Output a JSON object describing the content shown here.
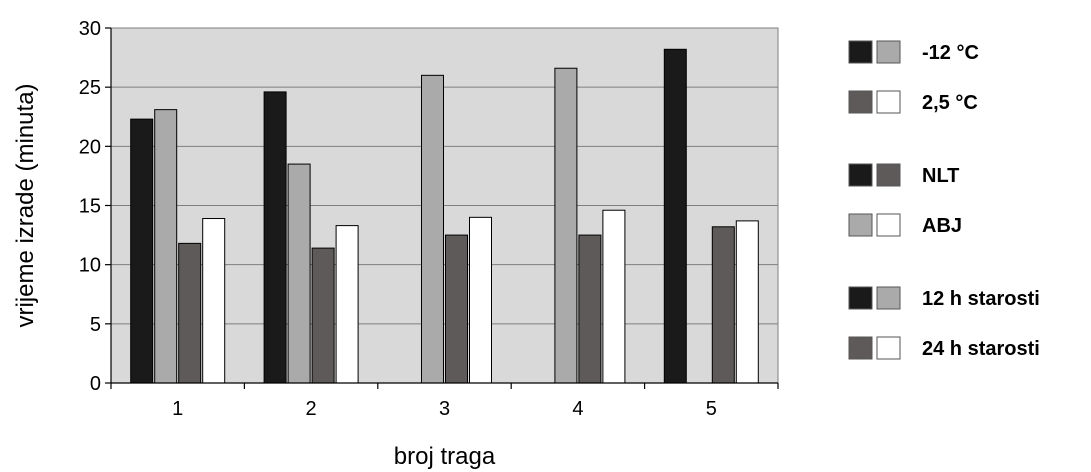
{
  "chart_data": {
    "type": "bar",
    "categories": [
      "1",
      "2",
      "3",
      "4",
      "5"
    ],
    "xlabel": "broj traga",
    "ylabel": "vrijeme izrade  (minuta)",
    "ylim": [
      0,
      30
    ],
    "yticks": [
      0,
      5,
      10,
      15,
      20,
      25,
      30
    ],
    "grid": true,
    "legend_position": "right",
    "colors": {
      "black": "#1a1a1a",
      "light_gray": "#aaaaaa",
      "dark_gray": "#5f5a5a",
      "white": "#ffffff",
      "plot_bg": "#d9d9d9"
    },
    "series": [
      {
        "values": [
          22.3,
          24.6,
          null,
          null,
          28.2
        ],
        "color": "#1a1a1a"
      },
      {
        "values": [
          23.1,
          18.5,
          26.0,
          26.6,
          null
        ],
        "color": "#aaaaaa"
      },
      {
        "values": [
          11.8,
          11.4,
          12.5,
          12.5,
          13.2
        ],
        "color": "#5f5a5a"
      },
      {
        "values": [
          13.9,
          13.3,
          14.0,
          14.6,
          13.7
        ],
        "color": "#ffffff"
      }
    ],
    "legend": [
      {
        "label": "-12 °C",
        "swatches": [
          "#1a1a1a",
          "#aaaaaa"
        ]
      },
      {
        "label": "2,5 °C",
        "swatches": [
          "#5f5a5a",
          "#ffffff"
        ]
      },
      {
        "label": "NLT",
        "swatches": [
          "#1a1a1a",
          "#5f5a5a"
        ]
      },
      {
        "label": "ABJ",
        "swatches": [
          "#aaaaaa",
          "#ffffff"
        ]
      },
      {
        "label": "12 h starosti",
        "swatches": [
          "#1a1a1a",
          "#aaaaaa"
        ]
      },
      {
        "label": "24 h starosti",
        "swatches": [
          "#5f5a5a",
          "#ffffff"
        ]
      }
    ]
  }
}
